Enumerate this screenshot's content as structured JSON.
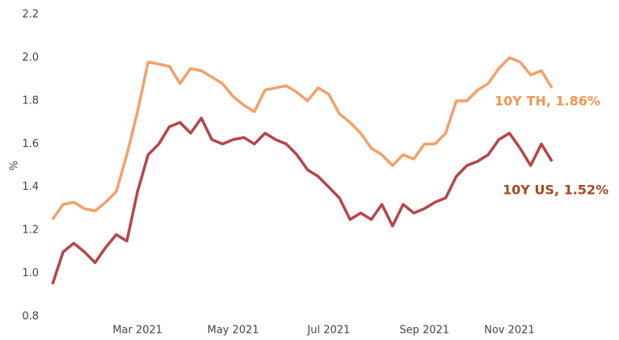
{
  "chart_data": {
    "type": "line",
    "y_label": "%",
    "categories": [
      null,
      null,
      null,
      null,
      null,
      null,
      null,
      null,
      "Mar 2021",
      null,
      null,
      null,
      null,
      null,
      null,
      null,
      null,
      "May 2021",
      null,
      null,
      null,
      null,
      null,
      null,
      null,
      null,
      "Jul 2021",
      null,
      null,
      null,
      null,
      null,
      null,
      null,
      null,
      "Sep 2021",
      null,
      null,
      null,
      null,
      null,
      null,
      null,
      "Nov 2021",
      null,
      null,
      null,
      null
    ],
    "series": [
      {
        "name": "10Y TH",
        "color": "#f4a06a",
        "values": [
          1.25,
          1.32,
          1.33,
          1.3,
          1.29,
          1.33,
          1.38,
          1.55,
          1.75,
          1.98,
          1.97,
          1.96,
          1.88,
          1.95,
          1.94,
          1.91,
          1.88,
          1.82,
          1.78,
          1.75,
          1.85,
          1.86,
          1.87,
          1.84,
          1.8,
          1.86,
          1.83,
          1.74,
          1.7,
          1.65,
          1.58,
          1.55,
          1.5,
          1.55,
          1.53,
          1.6,
          1.6,
          1.65,
          1.8,
          1.8,
          1.85,
          1.88,
          1.95,
          2.0,
          1.98,
          1.92,
          1.94,
          1.86
        ]
      },
      {
        "name": "10Y US",
        "color": "#b5454a",
        "values": [
          0.95,
          1.1,
          1.14,
          1.1,
          1.05,
          1.12,
          1.18,
          1.15,
          1.38,
          1.55,
          1.6,
          1.68,
          1.7,
          1.65,
          1.72,
          1.62,
          1.6,
          1.62,
          1.63,
          1.6,
          1.65,
          1.62,
          1.6,
          1.55,
          1.48,
          1.45,
          1.4,
          1.35,
          1.25,
          1.28,
          1.25,
          1.32,
          1.22,
          1.32,
          1.28,
          1.3,
          1.33,
          1.35,
          1.45,
          1.5,
          1.52,
          1.55,
          1.62,
          1.65,
          1.58,
          1.5,
          1.6,
          1.52
        ]
      }
    ],
    "annotations": [
      {
        "text": "10Y TH, 1.86%",
        "color": "#f0954f"
      },
      {
        "text": "10Y US, 1.52%",
        "color": "#a9471f"
      }
    ],
    "ylim": [
      0.8,
      2.2
    ],
    "yticks": [
      0.8,
      {
        "value": 1,
        "label": "1.0"
      },
      1.2,
      1.4,
      1.6,
      1.8,
      {
        "value": 2,
        "label": "2.0"
      },
      2.2
    ],
    "grid": false
  }
}
